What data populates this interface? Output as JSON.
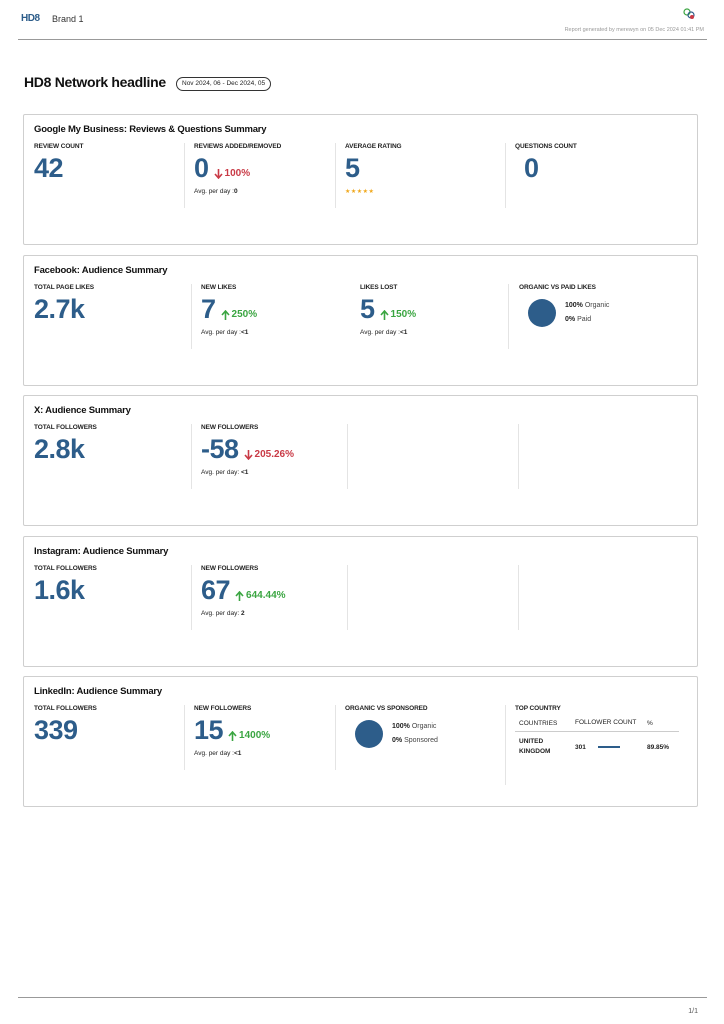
{
  "header": {
    "logo": "HD8",
    "brand": "Brand 1",
    "report_generated": "Report generated by merewyn on 05 Dec 2024 01:41 PM"
  },
  "headline": "HD8 Network headline",
  "date_range": "Nov 2024, 06 - Dec 2024, 05",
  "gmb": {
    "title": "Google My Business: Reviews & Questions Summary",
    "review_count_label": "REVIEW COUNT",
    "review_count": "42",
    "reviews_added_label": "REVIEWS ADDED/REMOVED",
    "reviews_added": "0",
    "reviews_added_delta": "100%",
    "reviews_added_avg_label": "Avg. per day :",
    "reviews_added_avg": "0",
    "average_rating_label": "AVERAGE RATING",
    "average_rating": "5",
    "stars": "★★★★★",
    "questions_label": "QUESTIONS COUNT",
    "questions": "0"
  },
  "facebook": {
    "title": "Facebook: Audience Summary",
    "total_label": "TOTAL PAGE LIKES",
    "total": "2.7k",
    "new_label": "NEW LIKES",
    "new": "7",
    "new_delta": "250%",
    "new_avg_label": "Avg. per day :",
    "new_avg": "<1",
    "lost_label": "LIKES LOST",
    "lost": "5",
    "lost_delta": "150%",
    "lost_avg_label": "Avg. per day :",
    "lost_avg": "<1",
    "organic_label": "ORGANIC VS PAID LIKES",
    "organic_pct": "100%",
    "organic_name": "Organic",
    "paid_pct": "0%",
    "paid_name": "Paid",
    "organic_fraction": 1.0,
    "pie_color": "#2d5d8a"
  },
  "x": {
    "title": "X: Audience Summary",
    "total_label": "TOTAL FOLLOWERS",
    "total": "2.8k",
    "new_label": "NEW FOLLOWERS",
    "new": "-58",
    "new_delta": "205.26%",
    "new_avg_label": "Avg. per day:",
    "new_avg": "<1"
  },
  "instagram": {
    "title": "Instagram: Audience Summary",
    "total_label": "TOTAL FOLLOWERS",
    "total": "1.6k",
    "new_label": "NEW FOLLOWERS",
    "new": "67",
    "new_delta": "644.44%",
    "new_avg_label": "Avg. per day:",
    "new_avg": "2"
  },
  "linkedin": {
    "title": "LinkedIn: Audience Summary",
    "total_label": "TOTAL FOLLOWERS",
    "total": "339",
    "new_label": "NEW FOLLOWERS",
    "new": "15",
    "new_delta": "1400%",
    "new_avg_label": "Avg. per day :",
    "new_avg": "<1",
    "organic_label": "ORGANIC VS SPONSORED",
    "organic_pct": "100%",
    "organic_name": "Organic",
    "sponsored_pct": "0%",
    "sponsored_name": "Sponsored",
    "top_country_label": "TOP COUNTRY",
    "table_headers": [
      "COUNTRIES",
      "FOLLOWER COUNT",
      "%"
    ],
    "rows": [
      {
        "country": "UNITED KINGDOM",
        "count": "301",
        "pct": "89.85%"
      }
    ]
  },
  "colors": {
    "value_blue": "#2d5d8a",
    "up_green": "#3aa541",
    "down_red": "#c93a46",
    "star_orange": "#f0a81c"
  },
  "footer": {
    "page": "1/1"
  }
}
